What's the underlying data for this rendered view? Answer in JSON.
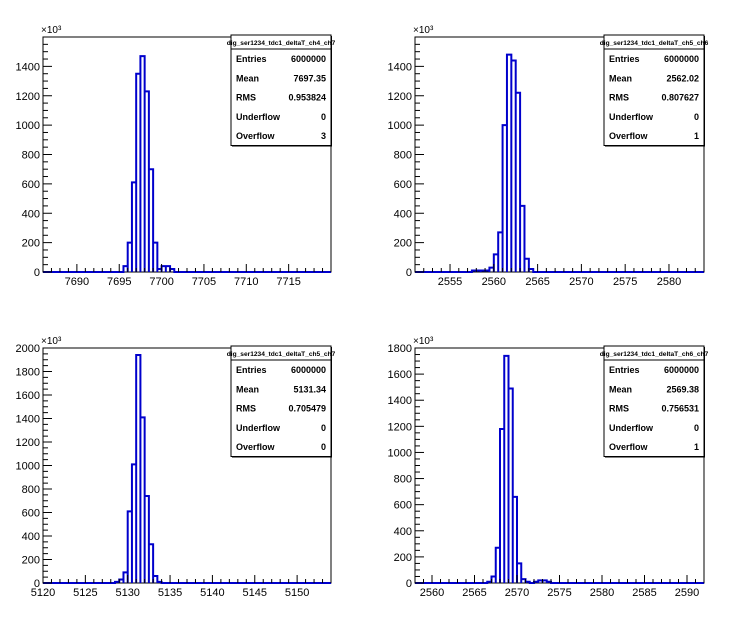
{
  "chart_data": [
    {
      "type": "histogram",
      "stats": {
        "title": "dig_ser1234_tdc1_deltaT_ch4_ch7",
        "rows": [
          {
            "label": "Entries",
            "value": "6000000"
          },
          {
            "label": "Mean",
            "value": "7697.35"
          },
          {
            "label": "RMS",
            "value": "0.953824"
          },
          {
            "label": "Underflow",
            "value": "0"
          },
          {
            "label": "Overflow",
            "value": "3"
          }
        ]
      },
      "y_multiplier": "×10³",
      "xlim": [
        7686,
        7720
      ],
      "ylim": [
        0,
        1600
      ],
      "xticks": [
        7690,
        7695,
        7700,
        7705,
        7710,
        7715
      ],
      "yticks": [
        0,
        200,
        400,
        600,
        800,
        1000,
        1200,
        1400
      ],
      "bin_width": 0.5,
      "bins": [
        {
          "x": 7695.5,
          "y": 40
        },
        {
          "x": 7696.0,
          "y": 200
        },
        {
          "x": 7696.5,
          "y": 610
        },
        {
          "x": 7697.0,
          "y": 1350
        },
        {
          "x": 7697.5,
          "y": 1470
        },
        {
          "x": 7698.0,
          "y": 1230
        },
        {
          "x": 7698.5,
          "y": 700
        },
        {
          "x": 7699.0,
          "y": 200
        },
        {
          "x": 7699.5,
          "y": 20
        },
        {
          "x": 7700.0,
          "y": 40
        },
        {
          "x": 7700.5,
          "y": 40
        },
        {
          "x": 7701.0,
          "y": 20
        }
      ]
    },
    {
      "type": "histogram",
      "stats": {
        "title": "dig_ser1234_tdc1_deltaT_ch5_ch6",
        "rows": [
          {
            "label": "Entries",
            "value": "6000000"
          },
          {
            "label": "Mean",
            "value": "2562.02"
          },
          {
            "label": "RMS",
            "value": "0.807627"
          },
          {
            "label": "Underflow",
            "value": "0"
          },
          {
            "label": "Overflow",
            "value": "1"
          }
        ]
      },
      "y_multiplier": "×10³",
      "xlim": [
        2551,
        2584
      ],
      "ylim": [
        0,
        1600
      ],
      "xticks": [
        2555,
        2560,
        2565,
        2570,
        2575,
        2580
      ],
      "yticks": [
        0,
        200,
        400,
        600,
        800,
        1000,
        1200,
        1400
      ],
      "bin_width": 0.5,
      "bins": [
        {
          "x": 2557.5,
          "y": 10
        },
        {
          "x": 2558.0,
          "y": 10
        },
        {
          "x": 2558.5,
          "y": 10
        },
        {
          "x": 2559.0,
          "y": 10
        },
        {
          "x": 2559.5,
          "y": 30
        },
        {
          "x": 2560.0,
          "y": 120
        },
        {
          "x": 2560.5,
          "y": 270
        },
        {
          "x": 2561.0,
          "y": 1000
        },
        {
          "x": 2561.5,
          "y": 1480
        },
        {
          "x": 2562.0,
          "y": 1440
        },
        {
          "x": 2562.5,
          "y": 1220
        },
        {
          "x": 2563.0,
          "y": 450
        },
        {
          "x": 2563.5,
          "y": 90
        },
        {
          "x": 2564.0,
          "y": 20
        }
      ]
    },
    {
      "type": "histogram",
      "stats": {
        "title": "dig_ser1234_tdc1_deltaT_ch5_ch7",
        "rows": [
          {
            "label": "Entries",
            "value": "6000000"
          },
          {
            "label": "Mean",
            "value": "5131.34"
          },
          {
            "label": "RMS",
            "value": "0.705479"
          },
          {
            "label": "Underflow",
            "value": "0"
          },
          {
            "label": "Overflow",
            "value": "0"
          }
        ]
      },
      "y_multiplier": "×10³",
      "xlim": [
        5120,
        5154
      ],
      "ylim": [
        0,
        2000
      ],
      "xticks": [
        5120,
        5125,
        5130,
        5135,
        5140,
        5145,
        5150
      ],
      "yticks": [
        0,
        200,
        400,
        600,
        800,
        1000,
        1200,
        1400,
        1600,
        1800,
        2000
      ],
      "bin_width": 0.5,
      "bins": [
        {
          "x": 5128.5,
          "y": 10
        },
        {
          "x": 5129.0,
          "y": 30
        },
        {
          "x": 5129.5,
          "y": 90
        },
        {
          "x": 5130.0,
          "y": 610
        },
        {
          "x": 5130.5,
          "y": 1010
        },
        {
          "x": 5131.0,
          "y": 1940
        },
        {
          "x": 5131.5,
          "y": 1410
        },
        {
          "x": 5132.0,
          "y": 740
        },
        {
          "x": 5132.5,
          "y": 330
        },
        {
          "x": 5133.0,
          "y": 60
        },
        {
          "x": 5133.5,
          "y": 10
        }
      ]
    },
    {
      "type": "histogram",
      "stats": {
        "title": "dig_ser1234_tdc1_deltaT_ch6_ch7",
        "rows": [
          {
            "label": "Entries",
            "value": "6000000"
          },
          {
            "label": "Mean",
            "value": "2569.38"
          },
          {
            "label": "RMS",
            "value": "0.756531"
          },
          {
            "label": "Underflow",
            "value": "0"
          },
          {
            "label": "Overflow",
            "value": "1"
          }
        ]
      },
      "y_multiplier": "×10³",
      "xlim": [
        2558,
        2592
      ],
      "ylim": [
        0,
        1800
      ],
      "xticks": [
        2560,
        2565,
        2570,
        2575,
        2580,
        2585,
        2590
      ],
      "yticks": [
        0,
        200,
        400,
        600,
        800,
        1000,
        1200,
        1400,
        1600,
        1800
      ],
      "bin_width": 0.5,
      "bins": [
        {
          "x": 2566.5,
          "y": 10
        },
        {
          "x": 2567.0,
          "y": 50
        },
        {
          "x": 2567.5,
          "y": 270
        },
        {
          "x": 2568.0,
          "y": 1180
        },
        {
          "x": 2568.5,
          "y": 1740
        },
        {
          "x": 2569.0,
          "y": 1490
        },
        {
          "x": 2569.5,
          "y": 660
        },
        {
          "x": 2570.0,
          "y": 150
        },
        {
          "x": 2570.5,
          "y": 30
        },
        {
          "x": 2571.0,
          "y": 10
        },
        {
          "x": 2572.0,
          "y": 10
        },
        {
          "x": 2572.5,
          "y": 20
        },
        {
          "x": 2573.0,
          "y": 20
        },
        {
          "x": 2573.5,
          "y": 10
        }
      ]
    }
  ],
  "style": {
    "line_color": "#0000cc",
    "axis_color": "#000000",
    "background": "#ffffff"
  }
}
